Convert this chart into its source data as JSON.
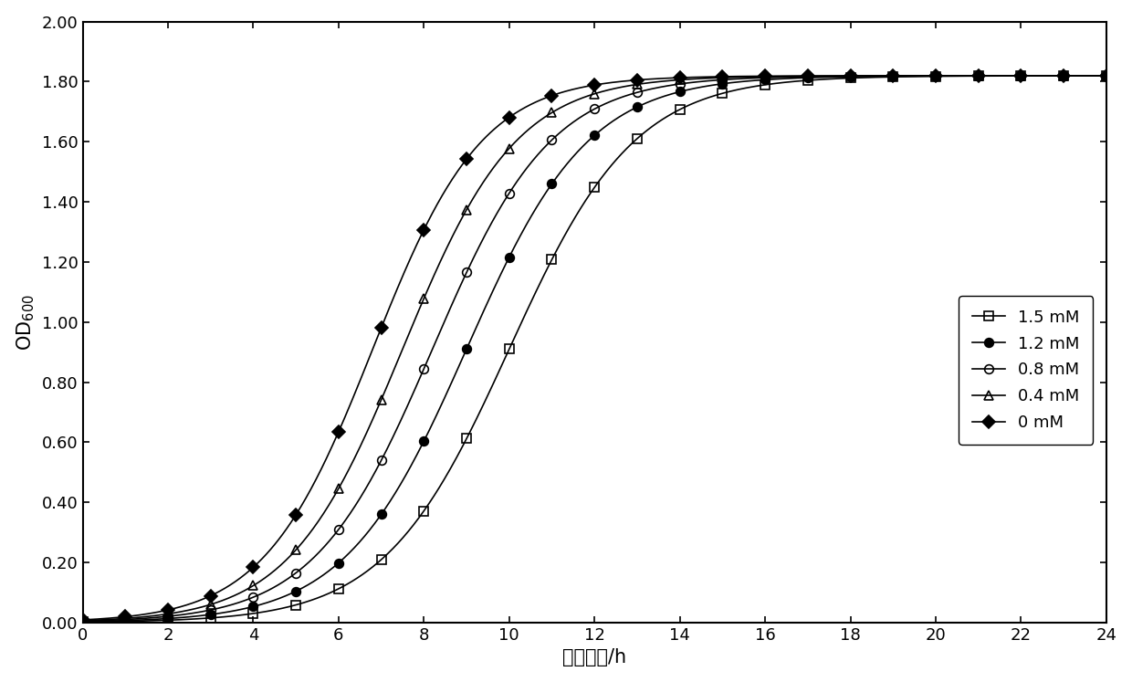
{
  "title": "",
  "xlabel": "培养时间/h",
  "ylabel": "OD$_{600}$",
  "xlim": [
    0,
    24
  ],
  "ylim": [
    0.0,
    2.0
  ],
  "xticks": [
    0,
    2,
    4,
    6,
    8,
    10,
    12,
    14,
    16,
    18,
    20,
    22,
    24
  ],
  "yticks": [
    0.0,
    0.2,
    0.4,
    0.6,
    0.8,
    1.0,
    1.2,
    1.4,
    1.6,
    1.8,
    2.0
  ],
  "series": [
    {
      "label": "1.5 mM",
      "L": 1.82,
      "k": 0.68,
      "x0": 10.0,
      "marker": "s",
      "color": "#000000",
      "fillstyle": "none",
      "markersize": 7,
      "markevery": 1
    },
    {
      "label": "1.2 mM",
      "L": 1.82,
      "k": 0.7,
      "x0": 9.0,
      "marker": "o",
      "color": "#000000",
      "fillstyle": "full",
      "markersize": 7,
      "markevery": 1
    },
    {
      "label": "0.8 mM",
      "L": 1.82,
      "k": 0.72,
      "x0": 8.2,
      "marker": "o",
      "color": "#000000",
      "fillstyle": "none",
      "markersize": 7,
      "markevery": 1
    },
    {
      "label": "0.4 mM",
      "L": 1.82,
      "k": 0.75,
      "x0": 7.5,
      "marker": "^",
      "color": "#000000",
      "fillstyle": "none",
      "markersize": 7,
      "markevery": 1
    },
    {
      "label": "0 mM",
      "L": 1.82,
      "k": 0.78,
      "x0": 6.8,
      "marker": "D",
      "color": "#000000",
      "fillstyle": "full",
      "markersize": 7,
      "markevery": 1
    }
  ],
  "background_color": "#ffffff",
  "figure_size": [
    12.4,
    7.47
  ],
  "dpi": 100
}
